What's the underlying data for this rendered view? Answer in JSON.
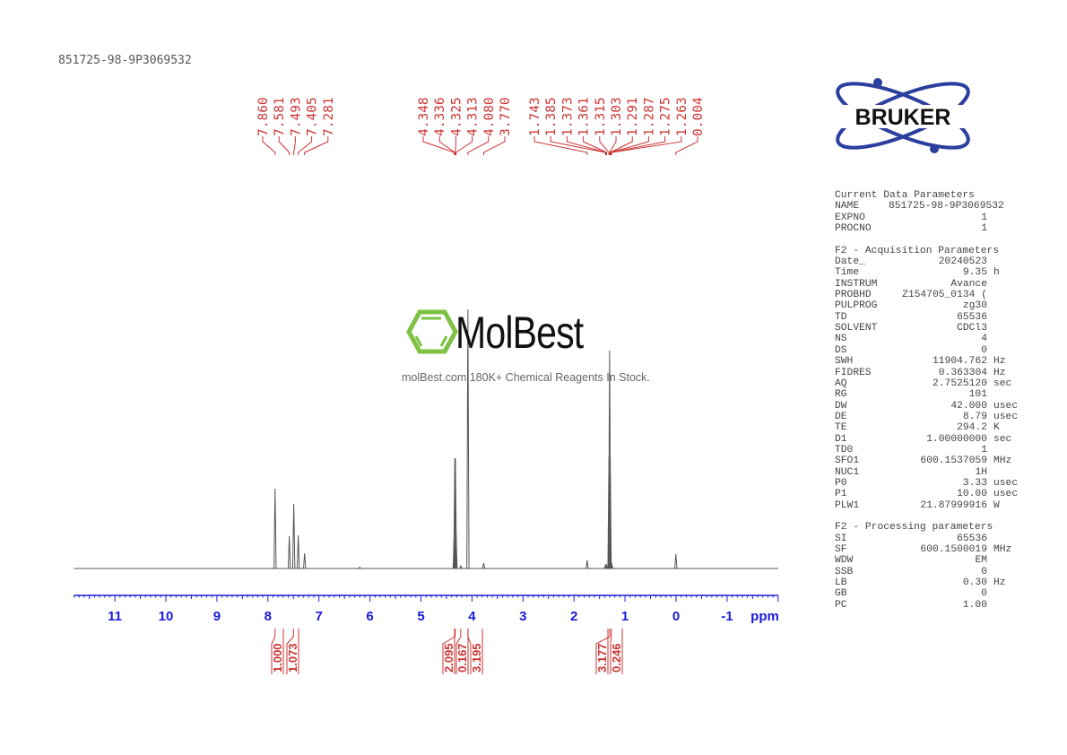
{
  "header": {
    "sample_id": "851725-98-9P3069532"
  },
  "logo": {
    "brand": "BRUKER"
  },
  "watermark": {
    "name": "MolBest",
    "tagline": "molBest.com,180K+ Chemical Reagents In Stock.",
    "color": "#7dc242"
  },
  "colors": {
    "spectrum": "#555555",
    "annotation": "#cc3333",
    "axis": "#1a1adb"
  },
  "chart_data": {
    "type": "line",
    "title": "",
    "xlabel": "ppm",
    "xlim": [
      11.8,
      -2.0
    ],
    "x_reversed": true,
    "x_ticks": [
      "11",
      "10",
      "9",
      "8",
      "7",
      "6",
      "5",
      "4",
      "3",
      "2",
      "1",
      "0",
      "-1"
    ],
    "peaks": [
      {
        "ppm": 7.86,
        "intensity": 89
      },
      {
        "ppm": 7.581,
        "intensity": 36
      },
      {
        "ppm": 7.493,
        "intensity": 72
      },
      {
        "ppm": 7.405,
        "intensity": 37
      },
      {
        "ppm": 7.281,
        "intensity": 17
      },
      {
        "ppm": 6.2,
        "intensity": 1.5
      },
      {
        "ppm": 4.348,
        "intensity": 40
      },
      {
        "ppm": 4.336,
        "intensity": 123
      },
      {
        "ppm": 4.325,
        "intensity": 123
      },
      {
        "ppm": 4.313,
        "intensity": 40
      },
      {
        "ppm": 4.22,
        "intensity": 3
      },
      {
        "ppm": 4.08,
        "intensity": 289
      },
      {
        "ppm": 3.77,
        "intensity": 6
      },
      {
        "ppm": 1.743,
        "intensity": 9
      },
      {
        "ppm": 1.385,
        "intensity": 3
      },
      {
        "ppm": 1.373,
        "intensity": 5
      },
      {
        "ppm": 1.361,
        "intensity": 3
      },
      {
        "ppm": 1.315,
        "intensity": 125
      },
      {
        "ppm": 1.303,
        "intensity": 243
      },
      {
        "ppm": 1.291,
        "intensity": 125
      },
      {
        "ppm": 1.287,
        "intensity": 6
      },
      {
        "ppm": 1.275,
        "intensity": 8
      },
      {
        "ppm": 1.263,
        "intensity": 6
      },
      {
        "ppm": 0.004,
        "intensity": 16
      }
    ],
    "peak_label_groups": [
      {
        "labels": [
          "7.860",
          "7.581",
          "7.493",
          "7.405",
          "7.281"
        ]
      },
      {
        "labels": [
          "4.348",
          "4.336",
          "4.325",
          "4.313",
          "4.080",
          "3.770"
        ]
      },
      {
        "labels": [
          "1.743",
          "1.385",
          "1.373",
          "1.361",
          "1.315",
          "1.303",
          "1.291",
          "1.287",
          "1.275",
          "1.263",
          "0.004"
        ]
      }
    ],
    "integrals": [
      {
        "ppm": 7.86,
        "value": "1.000"
      },
      {
        "ppm": 7.5,
        "value": "1.073"
      },
      {
        "ppm": 4.33,
        "value": "2.095"
      },
      {
        "ppm": 4.22,
        "value": "0.167"
      },
      {
        "ppm": 4.08,
        "value": "3.195"
      },
      {
        "ppm": 1.3,
        "value": "3.177"
      },
      {
        "ppm": 1.27,
        "value": "0.246"
      }
    ]
  },
  "parameters": {
    "current": {
      "title": "Current Data Parameters",
      "rows": [
        [
          "NAME",
          "851725-98-9P3069532",
          ""
        ],
        [
          "EXPNO",
          "1",
          ""
        ],
        [
          "PROCNO",
          "1",
          ""
        ]
      ]
    },
    "acquisition": {
      "title": "F2 - Acquisition Parameters",
      "rows": [
        [
          "Date_",
          "20240523",
          ""
        ],
        [
          "Time",
          "9.35",
          "h"
        ],
        [
          "INSTRUM",
          "Avance",
          ""
        ],
        [
          "PROBHD",
          "Z154705_0134 (",
          ""
        ],
        [
          "PULPROG",
          "zg30",
          ""
        ],
        [
          "TD",
          "65536",
          ""
        ],
        [
          "SOLVENT",
          "CDCl3",
          ""
        ],
        [
          "NS",
          "4",
          ""
        ],
        [
          "DS",
          "0",
          ""
        ],
        [
          "SWH",
          "11904.762",
          "Hz"
        ],
        [
          "FIDRES",
          "0.363304",
          "Hz"
        ],
        [
          "AQ",
          "2.7525120",
          "sec"
        ],
        [
          "RG",
          "101",
          ""
        ],
        [
          "DW",
          "42.000",
          "usec"
        ],
        [
          "DE",
          "8.79",
          "usec"
        ],
        [
          "TE",
          "294.2",
          "K"
        ],
        [
          "D1",
          "1.00000000",
          "sec"
        ],
        [
          "TD0",
          "1",
          ""
        ],
        [
          "SFO1",
          "600.1537059",
          "MHz"
        ],
        [
          "NUC1",
          "1H",
          ""
        ],
        [
          "P0",
          "3.33",
          "usec"
        ],
        [
          "P1",
          "10.00",
          "usec"
        ],
        [
          "PLW1",
          "21.87999916",
          "W"
        ]
      ]
    },
    "processing": {
      "title": "F2 - Processing parameters",
      "rows": [
        [
          "SI",
          "65536",
          ""
        ],
        [
          "SF",
          "600.1500019",
          "MHz"
        ],
        [
          "WDW",
          "EM",
          ""
        ],
        [
          "SSB",
          "0",
          ""
        ],
        [
          "LB",
          "0.30",
          "Hz"
        ],
        [
          "GB",
          "0",
          ""
        ],
        [
          "PC",
          "1.00",
          ""
        ]
      ]
    }
  }
}
